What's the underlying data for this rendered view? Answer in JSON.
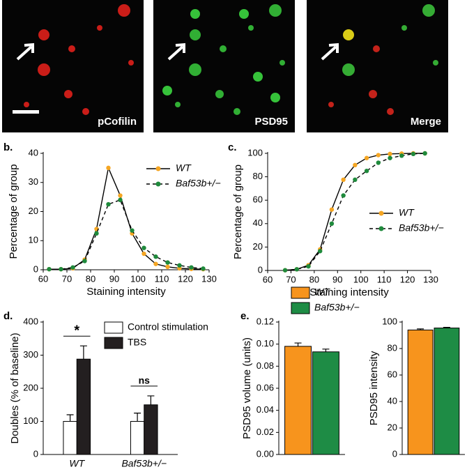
{
  "images": [
    {
      "label": "pCofilin"
    },
    {
      "label": "PSD95"
    },
    {
      "label": "Merge"
    }
  ],
  "chart_data": [
    {
      "type": "line",
      "panel": "b.",
      "xlabel": "Staining intensity",
      "ylabel": "Percentage of group",
      "x": [
        62.5,
        67.5,
        72.5,
        77.5,
        82.5,
        87.5,
        92.5,
        97.5,
        102.5,
        107.5,
        112.5,
        117.5,
        122.5,
        127.5
      ],
      "series": [
        {
          "name": "WT",
          "color": "#f5a623",
          "line_color": "#000000",
          "line_style": "solid",
          "values": [
            0.2,
            0.2,
            0.5,
            3.5,
            14,
            35,
            25.5,
            12.5,
            5.5,
            2,
            1,
            0.5,
            0.3,
            0.2
          ]
        },
        {
          "name": "Baf53b+/−",
          "color": "#1f8a3c",
          "line_color": "#000000",
          "line_style": "dashed",
          "values": [
            0.2,
            0.2,
            0.8,
            3,
            12.5,
            22.5,
            24,
            13.5,
            7.5,
            4.5,
            2.5,
            1.5,
            0.8,
            0.4
          ]
        }
      ],
      "xlim": [
        60,
        130
      ],
      "xticks": [
        60,
        70,
        80,
        90,
        100,
        110,
        120,
        130
      ],
      "ylim": [
        0,
        40
      ],
      "yticks": [
        0,
        10,
        20,
        30,
        40
      ],
      "legend": "upper right"
    },
    {
      "type": "line",
      "panel": "c.",
      "xlabel": "Staining intensity",
      "ylabel": "Percentage of group",
      "x": [
        67.5,
        72.5,
        77.5,
        82.5,
        87.5,
        92.5,
        97.5,
        102.5,
        107.5,
        112.5,
        117.5,
        122.5,
        127.5
      ],
      "series": [
        {
          "name": "WT",
          "color": "#f5a623",
          "line_color": "#000000",
          "line_style": "solid",
          "values": [
            0.2,
            1,
            4.5,
            18,
            52,
            77.5,
            90,
            96,
            98.5,
            99.5,
            99.8,
            100,
            100
          ]
        },
        {
          "name": "Baf53b+/−",
          "color": "#1f8a3c",
          "line_color": "#000000",
          "line_style": "dashed",
          "values": [
            0.2,
            1,
            3.5,
            16.5,
            40,
            64,
            77.5,
            85,
            92,
            96,
            98,
            99.5,
            100
          ]
        }
      ],
      "xlim": [
        60,
        130
      ],
      "xticks": [
        60,
        70,
        80,
        90,
        100,
        110,
        120,
        130
      ],
      "ylim": [
        0,
        100
      ],
      "yticks": [
        0,
        20,
        40,
        60,
        80,
        100
      ],
      "legend": "center right"
    },
    {
      "type": "bar",
      "panel": "d.",
      "ylabel": "Doubles (% of baseline)",
      "categories": [
        "WT",
        "Baf53b+/−"
      ],
      "series": [
        {
          "name": "Control stimulation",
          "color": "#ffffff",
          "values": [
            100,
            100
          ],
          "errors": [
            20,
            25
          ]
        },
        {
          "name": "TBS",
          "color": "#231f20",
          "values": [
            288,
            150
          ],
          "errors": [
            40,
            27
          ]
        }
      ],
      "ylim": [
        0,
        400
      ],
      "yticks": [
        0,
        100,
        200,
        300,
        400
      ],
      "legend": "upper right",
      "annotations": [
        {
          "text": "*",
          "category": 0
        },
        {
          "text": "ns",
          "category": 1
        }
      ]
    },
    {
      "type": "bar",
      "panel": "e.",
      "ylabel": "PSD95 volume (units)",
      "series": [
        {
          "name": "WT",
          "color": "#f7941d",
          "values": [
            0.098
          ],
          "errors": [
            0.003
          ]
        },
        {
          "name": "Baf53b+/−",
          "color": "#1e8c45",
          "values": [
            0.093
          ],
          "errors": [
            0.0025
          ]
        }
      ],
      "ylim": [
        0,
        0.12
      ],
      "yticks": [
        {
          "value": 0,
          "label": "0.00"
        },
        {
          "value": 0.02,
          "label": "0.02"
        },
        {
          "value": 0.04,
          "label": "0.04"
        },
        {
          "value": 0.06,
          "label": "0.06"
        },
        {
          "value": 0.08,
          "label": "0.08"
        },
        {
          "value": 0.1,
          "label": "0.10"
        },
        {
          "value": 0.12,
          "label": "0.12"
        }
      ],
      "legend": "top"
    },
    {
      "type": "bar",
      "ylabel": "PSD95 intensity",
      "series": [
        {
          "color": "#f7941d",
          "values": [
            94
          ],
          "errors": [
            0.8
          ]
        },
        {
          "color": "#1e8c45",
          "values": [
            95.5
          ],
          "errors": [
            0.5
          ]
        }
      ],
      "ylim": [
        0,
        100
      ],
      "yticks": [
        0,
        20,
        40,
        60,
        80,
        100
      ]
    }
  ]
}
